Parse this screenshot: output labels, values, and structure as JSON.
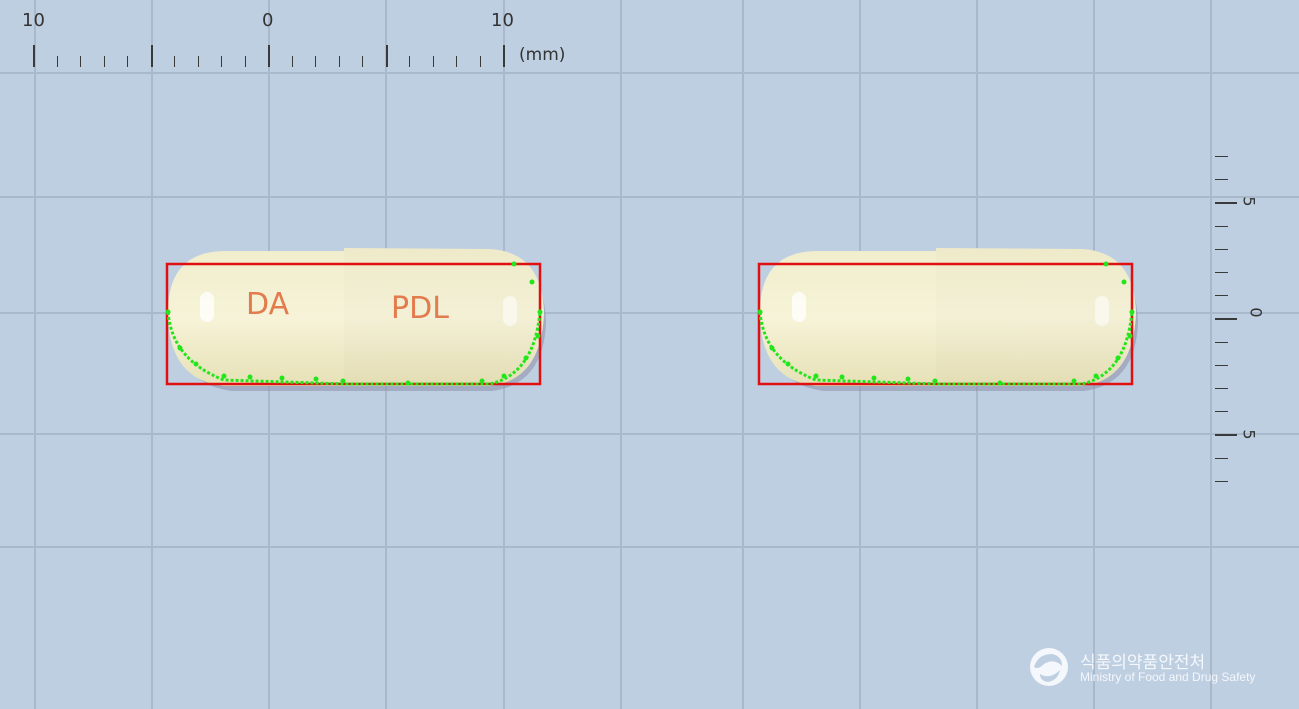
{
  "ruler_top": {
    "labels": [
      "10",
      "0",
      "10"
    ],
    "unit": "(mm)"
  },
  "ruler_right": {
    "labels": [
      "5",
      "0",
      "5"
    ]
  },
  "capsules": [
    {
      "imprint_left": "DA",
      "imprint_right": "PDL"
    },
    {
      "imprint_left": "",
      "imprint_right": ""
    }
  ],
  "logo": {
    "korean_name": "식품의약품안전처",
    "english_name": "Ministry of Food and Drug Safety"
  },
  "colors": {
    "background": "#bfcfe2",
    "grid": "#a9b8cb",
    "capsule_body": "#f2efcf",
    "imprint": "#e27b4d",
    "bounding_box": "#e01010",
    "contour_points": "#22e51a"
  }
}
